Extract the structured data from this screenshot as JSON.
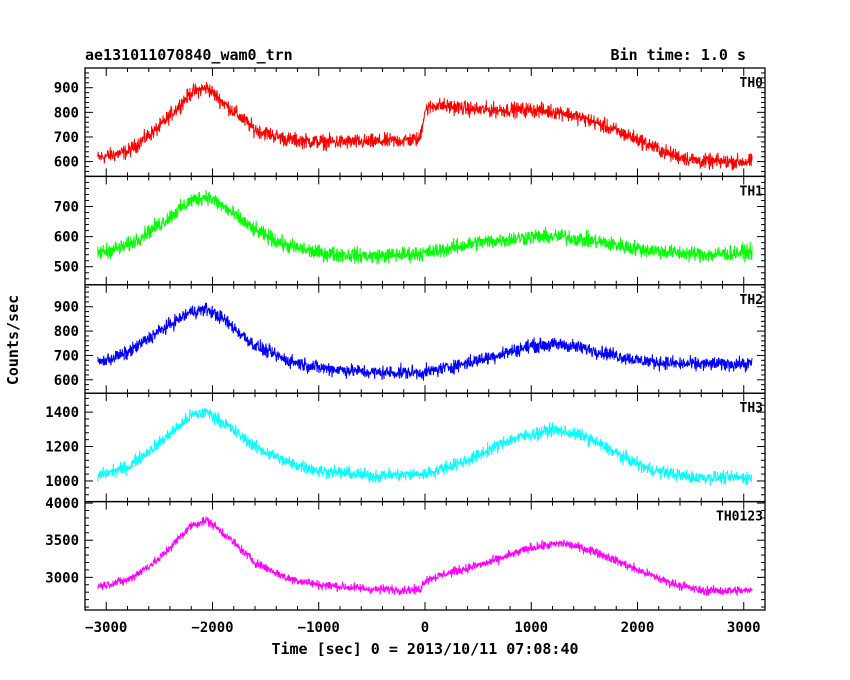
{
  "chart_data": {
    "type": "line",
    "title_left": "ae131011070840_wam0_trn",
    "title_right": "Bin time: 1.0 s",
    "xlabel": "Time [sec] 0 = 2013/10/11 07:08:40",
    "ylabel": "Counts/sec",
    "xlim": [
      -3200,
      3200
    ],
    "x_ticks": [
      -3000,
      -2000,
      -1000,
      0,
      1000,
      2000,
      3000
    ],
    "x_tick_labels": [
      "−3000",
      "−2000",
      "−1000",
      "0",
      "1000",
      "2000",
      "3000"
    ],
    "x_data_range": [
      -3080,
      3080
    ],
    "grid": false,
    "panels": [
      {
        "name": "TH0",
        "color": "#ff0000",
        "ylim": [
          540,
          980
        ],
        "y_ticks": [
          600,
          700,
          800,
          900
        ],
        "noise_halfwidth": 45,
        "trend": [
          [
            -3080,
            615
          ],
          [
            -2800,
            640
          ],
          [
            -2500,
            740
          ],
          [
            -2200,
            880
          ],
          [
            -2050,
            900
          ],
          [
            -1900,
            840
          ],
          [
            -1600,
            730
          ],
          [
            -1300,
            690
          ],
          [
            -1000,
            680
          ],
          [
            -500,
            680
          ],
          [
            -50,
            690
          ],
          [
            0,
            810
          ],
          [
            100,
            830
          ],
          [
            500,
            810
          ],
          [
            1000,
            810
          ],
          [
            1300,
            800
          ],
          [
            1600,
            760
          ],
          [
            2000,
            690
          ],
          [
            2300,
            630
          ],
          [
            2600,
            600
          ],
          [
            3080,
            600
          ]
        ]
      },
      {
        "name": "TH1",
        "color": "#00ff00",
        "ylim": [
          440,
          800
        ],
        "y_ticks": [
          500,
          600,
          700
        ],
        "noise_halfwidth": 38,
        "trend": [
          [
            -3080,
            545
          ],
          [
            -2800,
            570
          ],
          [
            -2500,
            640
          ],
          [
            -2200,
            720
          ],
          [
            -2050,
            735
          ],
          [
            -1900,
            700
          ],
          [
            -1600,
            620
          ],
          [
            -1300,
            570
          ],
          [
            -1000,
            545
          ],
          [
            -500,
            535
          ],
          [
            0,
            545
          ],
          [
            500,
            580
          ],
          [
            1000,
            600
          ],
          [
            1300,
            600
          ],
          [
            1600,
            585
          ],
          [
            2000,
            560
          ],
          [
            2400,
            545
          ],
          [
            2700,
            540
          ],
          [
            3080,
            550
          ]
        ]
      },
      {
        "name": "TH2",
        "color": "#0000ff",
        "ylim": [
          545,
          990
        ],
        "y_ticks": [
          600,
          700,
          800,
          900
        ],
        "noise_halfwidth": 42,
        "trend": [
          [
            -3080,
            670
          ],
          [
            -2800,
            710
          ],
          [
            -2500,
            800
          ],
          [
            -2200,
            880
          ],
          [
            -2050,
            890
          ],
          [
            -1900,
            850
          ],
          [
            -1600,
            740
          ],
          [
            -1300,
            680
          ],
          [
            -1000,
            650
          ],
          [
            -500,
            630
          ],
          [
            0,
            630
          ],
          [
            500,
            680
          ],
          [
            1000,
            740
          ],
          [
            1300,
            745
          ],
          [
            1600,
            720
          ],
          [
            2000,
            680
          ],
          [
            2400,
            665
          ],
          [
            3080,
            665
          ]
        ]
      },
      {
        "name": "TH3",
        "color": "#00ffff",
        "ylim": [
          880,
          1510
        ],
        "y_ticks": [
          1000,
          1200,
          1400
        ],
        "noise_halfwidth": 55,
        "trend": [
          [
            -3080,
            1030
          ],
          [
            -2800,
            1080
          ],
          [
            -2500,
            1220
          ],
          [
            -2200,
            1380
          ],
          [
            -2050,
            1400
          ],
          [
            -1900,
            1340
          ],
          [
            -1600,
            1200
          ],
          [
            -1300,
            1110
          ],
          [
            -1000,
            1060
          ],
          [
            -500,
            1030
          ],
          [
            0,
            1040
          ],
          [
            400,
            1120
          ],
          [
            800,
            1240
          ],
          [
            1200,
            1300
          ],
          [
            1500,
            1260
          ],
          [
            1800,
            1160
          ],
          [
            2100,
            1070
          ],
          [
            2500,
            1020
          ],
          [
            3080,
            1020
          ]
        ]
      },
      {
        "name": "TH0123",
        "color": "#ff00ff",
        "ylim": [
          2560,
          4020
        ],
        "y_ticks": [
          3000,
          3500,
          4000
        ],
        "noise_halfwidth": 90,
        "trend": [
          [
            -3080,
            2880
          ],
          [
            -2800,
            2960
          ],
          [
            -2500,
            3250
          ],
          [
            -2200,
            3700
          ],
          [
            -2050,
            3770
          ],
          [
            -1900,
            3600
          ],
          [
            -1600,
            3200
          ],
          [
            -1300,
            2990
          ],
          [
            -1000,
            2900
          ],
          [
            -500,
            2840
          ],
          [
            -50,
            2830
          ],
          [
            0,
            2960
          ],
          [
            200,
            3050
          ],
          [
            600,
            3200
          ],
          [
            1000,
            3400
          ],
          [
            1300,
            3460
          ],
          [
            1600,
            3350
          ],
          [
            2000,
            3100
          ],
          [
            2300,
            2930
          ],
          [
            2600,
            2820
          ],
          [
            3080,
            2820
          ]
        ]
      }
    ]
  }
}
